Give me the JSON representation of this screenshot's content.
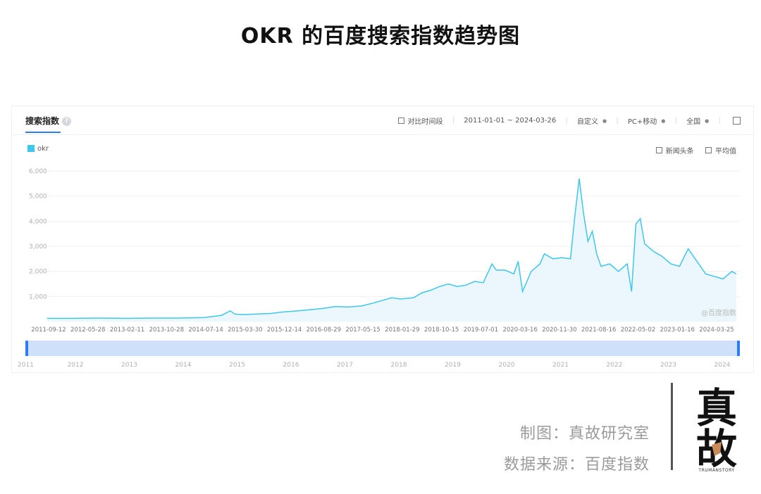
{
  "title": "OKR 的百度搜索指数趋势图",
  "panel": {
    "tab_label": "搜索指数",
    "help_icon": "?",
    "toolbar": {
      "compare_label": "对比时间段",
      "date_range": "2011-01-01 ~ 2024-03-26",
      "custom_label": "自定义",
      "device_label": "PC+移动",
      "region_label": "全国"
    },
    "legend_label": "okr",
    "option_news": "新闻头条",
    "option_average": "平均值",
    "watermark": "@百度指数"
  },
  "credits": {
    "maker": "制图：真故研究室",
    "source": "数据来源：百度指数"
  },
  "logo": {
    "text": "真故",
    "subtitle": "TRUMANSTORY"
  },
  "colors": {
    "line": "#3ec7ec",
    "area": "#e8f6fc",
    "accent": "#2b7ef5",
    "slider": "#cfe0fb"
  },
  "chart_data": {
    "type": "area",
    "title": "",
    "xlabel": "",
    "ylabel": "",
    "ylim": [
      0,
      6000
    ],
    "yticks": [
      "1,000",
      "2,000",
      "3,000",
      "4,000",
      "5,000",
      "6,000"
    ],
    "ytick_values": [
      1000,
      2000,
      3000,
      4000,
      5000,
      6000
    ],
    "xtick_labels": [
      "2011-09-12",
      "2012-05-28",
      "2013-02-11",
      "2013-10-28",
      "2014-07-14",
      "2015-03-30",
      "2015-12-14",
      "2016-08-29",
      "2017-05-15",
      "2018-01-29",
      "2018-10-15",
      "2019-07-01",
      "2020-03-16",
      "2020-11-30",
      "2021-08-16",
      "2022-05-02",
      "2023-01-16",
      "2024-03-25"
    ],
    "slider_years": [
      "2011",
      "2012",
      "2013",
      "2014",
      "2015",
      "2016",
      "2017",
      "2018",
      "2019",
      "2020",
      "2021",
      "2022",
      "2023",
      "2024"
    ],
    "grid": true,
    "legend_position": "top-left",
    "series": [
      {
        "name": "okr",
        "x": [
          "2011-01",
          "2011-07",
          "2012-01",
          "2012-07",
          "2013-01",
          "2013-07",
          "2014-01",
          "2014-05",
          "2014-07",
          "2014-08",
          "2014-10",
          "2015-01",
          "2015-04",
          "2015-07",
          "2015-10",
          "2016-01",
          "2016-04",
          "2016-07",
          "2016-10",
          "2017-01",
          "2017-04",
          "2017-06",
          "2017-08",
          "2017-10",
          "2018-01",
          "2018-03",
          "2018-05",
          "2018-07",
          "2018-09",
          "2018-11",
          "2019-01",
          "2019-03",
          "2019-05",
          "2019-07",
          "2019-08",
          "2019-10",
          "2019-12",
          "2020-01",
          "2020-02",
          "2020-04",
          "2020-06",
          "2020-07",
          "2020-09",
          "2020-11",
          "2021-01",
          "2021-02",
          "2021-03",
          "2021-04",
          "2021-05",
          "2021-06",
          "2021-07",
          "2021-08",
          "2021-10",
          "2021-12",
          "2022-02",
          "2022-03",
          "2022-04",
          "2022-05",
          "2022-06",
          "2022-08",
          "2022-10",
          "2022-12",
          "2023-02",
          "2023-04",
          "2023-06",
          "2023-08",
          "2023-10",
          "2023-12",
          "2024-02",
          "2024-03"
        ],
        "values": [
          130,
          130,
          140,
          130,
          140,
          140,
          160,
          250,
          430,
          300,
          280,
          300,
          320,
          380,
          420,
          470,
          520,
          600,
          580,
          620,
          750,
          850,
          950,
          900,
          950,
          1150,
          1250,
          1400,
          1500,
          1400,
          1450,
          1600,
          1550,
          2300,
          2050,
          2050,
          1900,
          2400,
          1200,
          2000,
          2300,
          2700,
          2500,
          2550,
          2500,
          4200,
          5700,
          4300,
          3200,
          3600,
          2700,
          2200,
          2300,
          2000,
          2300,
          1200,
          3900,
          4100,
          3100,
          2800,
          2600,
          2300,
          2200,
          2900,
          2400,
          1900,
          1800,
          1700,
          2000,
          1900
        ]
      }
    ]
  }
}
